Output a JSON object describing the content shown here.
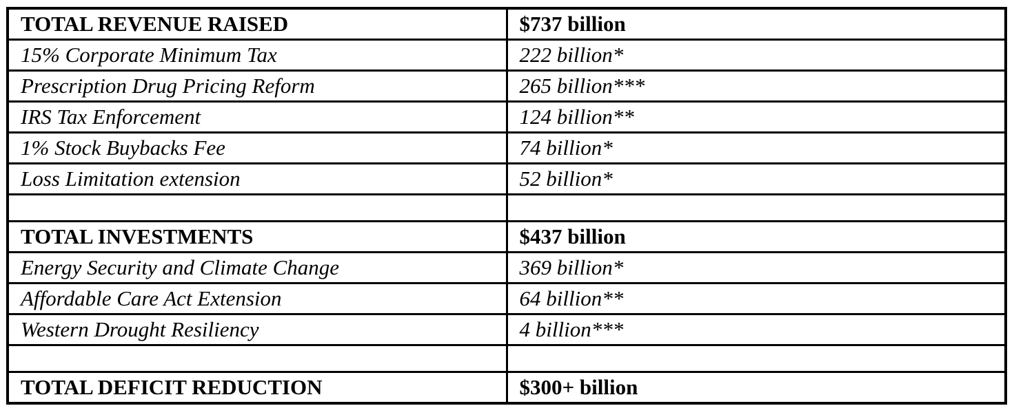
{
  "document": {
    "type": "budget-summary-table",
    "colors": {
      "background": "#ffffff",
      "border": "#000000",
      "text": "#000000"
    }
  },
  "table": {
    "columns": [
      "category",
      "amount"
    ],
    "rows": [
      {
        "label": "TOTAL REVENUE RAISED",
        "value": "$737 billion",
        "style": "header"
      },
      {
        "label": "15% Corporate Minimum Tax",
        "value": "222 billion*",
        "style": "item"
      },
      {
        "label": "Prescription Drug Pricing Reform",
        "value": "265 billion***",
        "style": "item"
      },
      {
        "label": "IRS Tax Enforcement",
        "value": "124 billion**",
        "style": "item"
      },
      {
        "label": "1% Stock Buybacks Fee",
        "value": "74 billion*",
        "style": "item"
      },
      {
        "label": "Loss Limitation extension",
        "value": "52 billion*",
        "style": "item"
      },
      {
        "label": "",
        "value": "",
        "style": "spacer"
      },
      {
        "label": "TOTAL INVESTMENTS",
        "value": "$437 billion",
        "style": "header"
      },
      {
        "label": "Energy Security and Climate Change",
        "value": "369 billion*",
        "style": "item"
      },
      {
        "label": "Affordable Care Act Extension",
        "value": "64 billion**",
        "style": "item"
      },
      {
        "label": "Western Drought Resiliency",
        "value": "4 billion***",
        "style": "item"
      },
      {
        "label": "",
        "value": "",
        "style": "spacer"
      },
      {
        "label": "TOTAL DEFICIT REDUCTION",
        "value": "$300+ billion",
        "style": "header"
      }
    ]
  }
}
